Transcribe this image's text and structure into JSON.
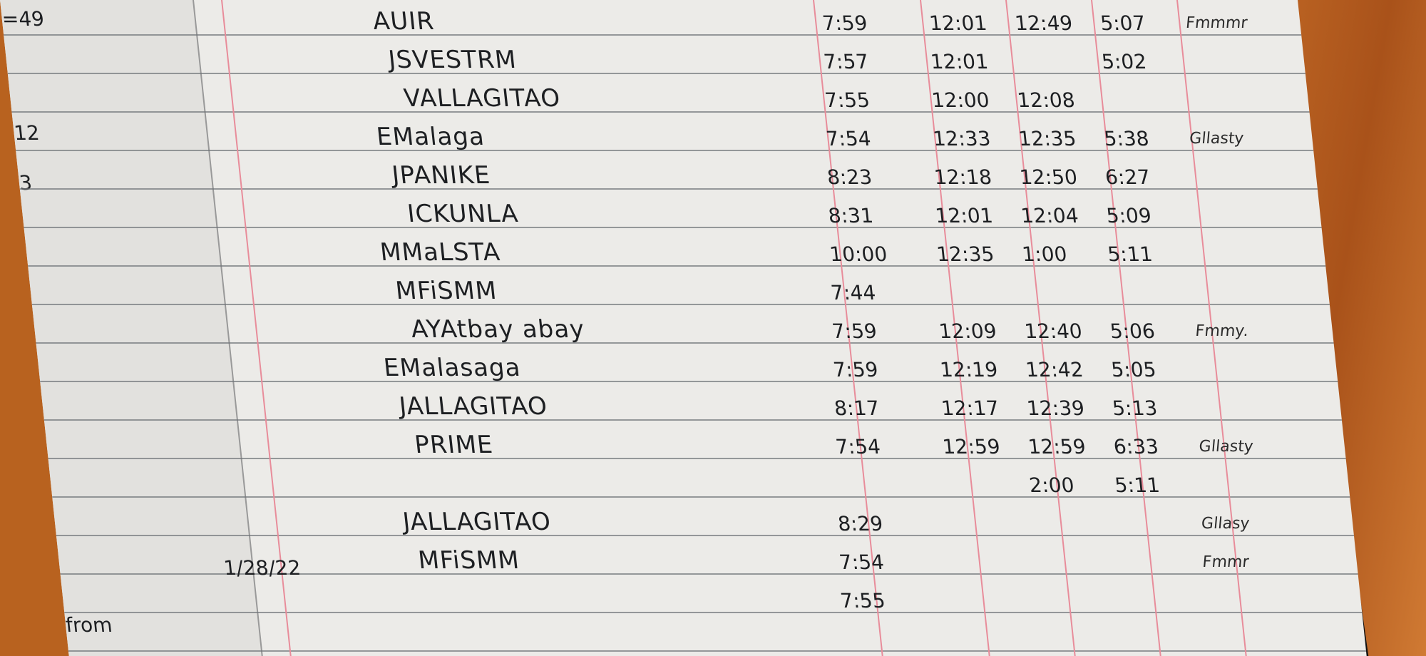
{
  "logbook": {
    "entries": [
      {
        "name": "AUIR",
        "times": [
          "7:59",
          "12:01",
          "12:49",
          "5:07"
        ],
        "signature": "Fmmmr"
      },
      {
        "name": "JSVESTRM",
        "times": [
          "7:57",
          "12:01",
          "",
          "5:02"
        ],
        "signature": ""
      },
      {
        "name": "VALLAGITAO",
        "times": [
          "7:55",
          "12:00",
          "12:08",
          ""
        ],
        "signature": ""
      },
      {
        "name": "EMalaga",
        "times": [
          "7:54",
          "12:33",
          "12:35",
          "5:38"
        ],
        "signature": "Gllasty"
      },
      {
        "name": "JPANIKE",
        "times": [
          "8:23",
          "12:18",
          "12:50",
          "6:27"
        ],
        "signature": ""
      },
      {
        "name": "ICKUNLA",
        "times": [
          "8:31",
          "12:01",
          "12:04",
          "5:09"
        ],
        "signature": ""
      },
      {
        "name": "MMaLSTA",
        "times": [
          "10:00",
          "12:35",
          "1:00",
          "5:11"
        ],
        "signature": ""
      },
      {
        "name": "MFiSMM",
        "times": [
          "7:44",
          "",
          "",
          ""
        ],
        "signature": ""
      },
      {
        "name": "AYAtbay abay",
        "times": [
          "7:59",
          "12:09",
          "12:40",
          "5:06"
        ],
        "signature": "Fmmy."
      },
      {
        "name": "EMalasaga",
        "times": [
          "7:59",
          "12:19",
          "12:42",
          "5:05"
        ],
        "signature": ""
      },
      {
        "name": "JALLAGITAO",
        "times": [
          "8:17",
          "12:17",
          "12:39",
          "5:13"
        ],
        "signature": ""
      },
      {
        "name": "PRIME",
        "times": [
          "7:54",
          "12:59",
          "12:59",
          "6:33"
        ],
        "signature": "Gllasty"
      },
      {
        "name": "",
        "times": [
          "",
          "",
          "2:00",
          "5:11"
        ],
        "signature": ""
      },
      {
        "name": "JALLAGITAO",
        "times": [
          "8:29",
          "",
          "",
          ""
        ],
        "signature": "Gllasy"
      },
      {
        "name": "MFiSMM",
        "times": [
          "7:54",
          "",
          "",
          ""
        ],
        "signature": "Fmmr"
      },
      {
        "name": "",
        "times": [
          "7:55",
          "",
          "",
          ""
        ],
        "signature": ""
      }
    ],
    "date_mark": "1/28/22",
    "left_page_marks": [
      "=49",
      "12",
      "3",
      "from"
    ]
  }
}
